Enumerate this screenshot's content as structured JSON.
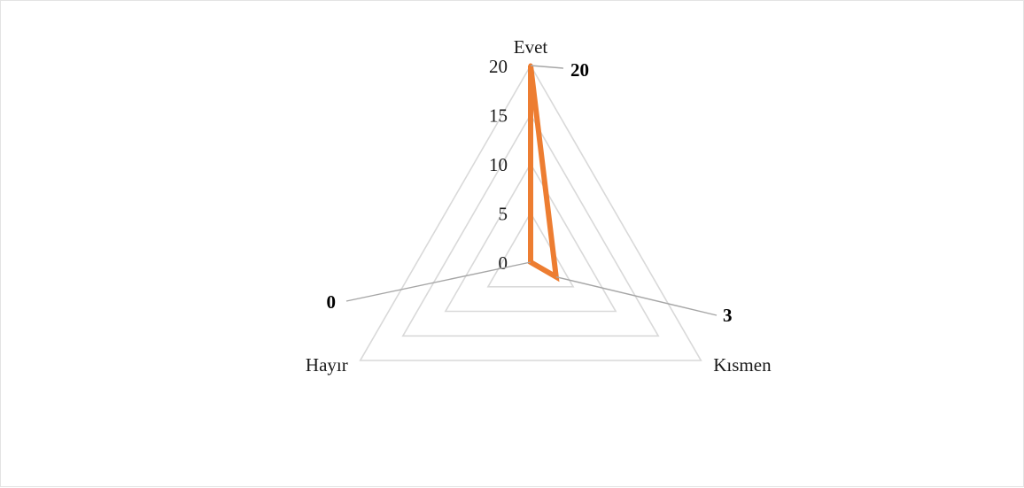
{
  "chart_data": {
    "type": "radar",
    "title": "",
    "categories": [
      "Evet",
      "Kısmen",
      "Hayır"
    ],
    "series": [
      {
        "values": [
          20,
          3,
          0
        ],
        "color": "#ED7D31"
      }
    ],
    "rlim": [
      0,
      20
    ],
    "ticks": [
      0,
      5,
      10,
      15,
      20
    ],
    "tick_labels": [
      "0",
      "5",
      "10",
      "15",
      "20"
    ],
    "grid": true,
    "gridline_color": "#d9d9d9",
    "data_labels": [
      "20",
      "3",
      "0"
    ],
    "legend": "none"
  }
}
